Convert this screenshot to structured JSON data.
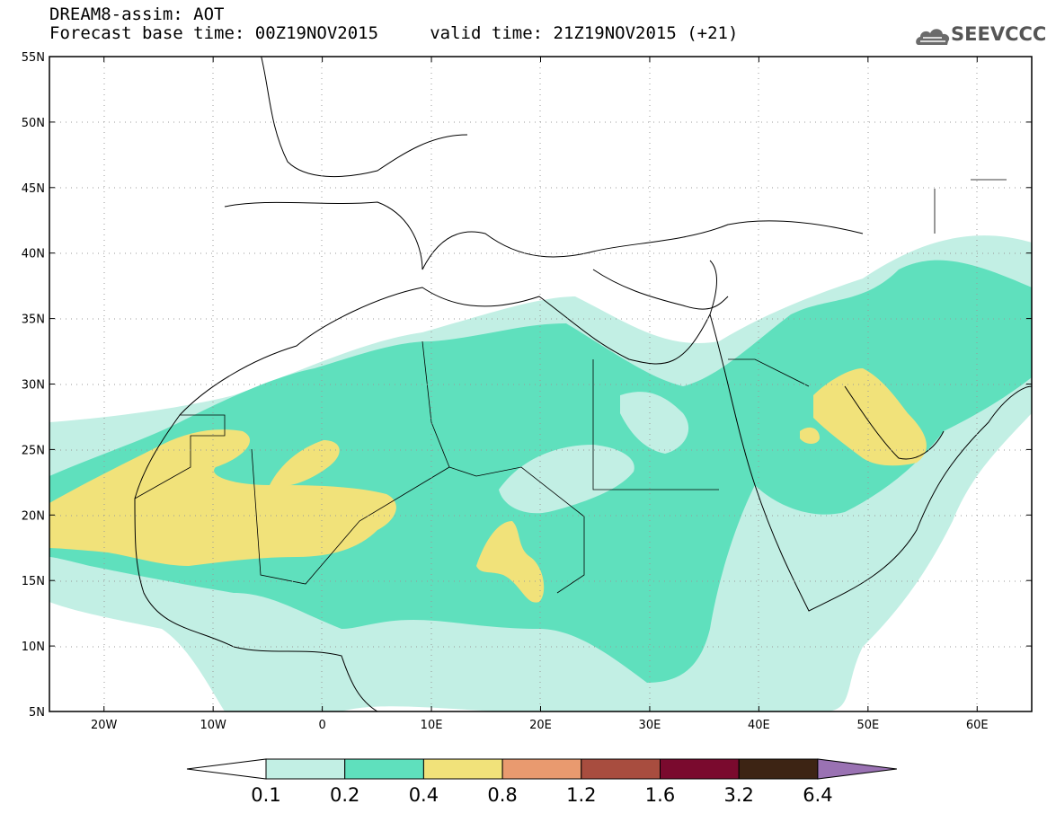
{
  "title": {
    "line1": "DREAM8-assim: AOT",
    "line2": "Forecast base time: 00Z19NOV2015     valid time: 21Z19NOV2015 (+21)"
  },
  "logo": {
    "text": "SEEVCCC",
    "icon": "cloud-logo-icon"
  },
  "map": {
    "lon_range": [
      -25,
      65
    ],
    "lat_range": [
      5,
      55
    ],
    "grid_lines": "dotted",
    "lat_ticks": [
      {
        "value": 55,
        "label": "55N"
      },
      {
        "value": 50,
        "label": "50N"
      },
      {
        "value": 45,
        "label": "45N"
      },
      {
        "value": 40,
        "label": "40N"
      },
      {
        "value": 35,
        "label": "35N"
      },
      {
        "value": 30,
        "label": "30N"
      },
      {
        "value": 25,
        "label": "25N"
      },
      {
        "value": 20,
        "label": "20N"
      },
      {
        "value": 15,
        "label": "15N"
      },
      {
        "value": 10,
        "label": "10N"
      },
      {
        "value": 5,
        "label": "5N"
      }
    ],
    "lon_ticks": [
      {
        "value": -20,
        "label": "20W"
      },
      {
        "value": -10,
        "label": "10W"
      },
      {
        "value": 0,
        "label": "0"
      },
      {
        "value": 10,
        "label": "10E"
      },
      {
        "value": 20,
        "label": "20E"
      },
      {
        "value": 30,
        "label": "30E"
      },
      {
        "value": 40,
        "label": "40E"
      },
      {
        "value": 50,
        "label": "50E"
      },
      {
        "value": 60,
        "label": "60E"
      }
    ]
  },
  "colorbar": {
    "levels": [
      "0.1",
      "0.2",
      "0.4",
      "0.8",
      "1.2",
      "1.6",
      "3.2",
      "6.4"
    ],
    "colors": [
      "#c2efe4",
      "#5fe0bd",
      "#f1e27a",
      "#e99a6f",
      "#a84d3f",
      "#7a0a2e",
      "#3d2414"
    ],
    "under_color": "#ffffff",
    "over_color": "#9a72b3"
  }
}
